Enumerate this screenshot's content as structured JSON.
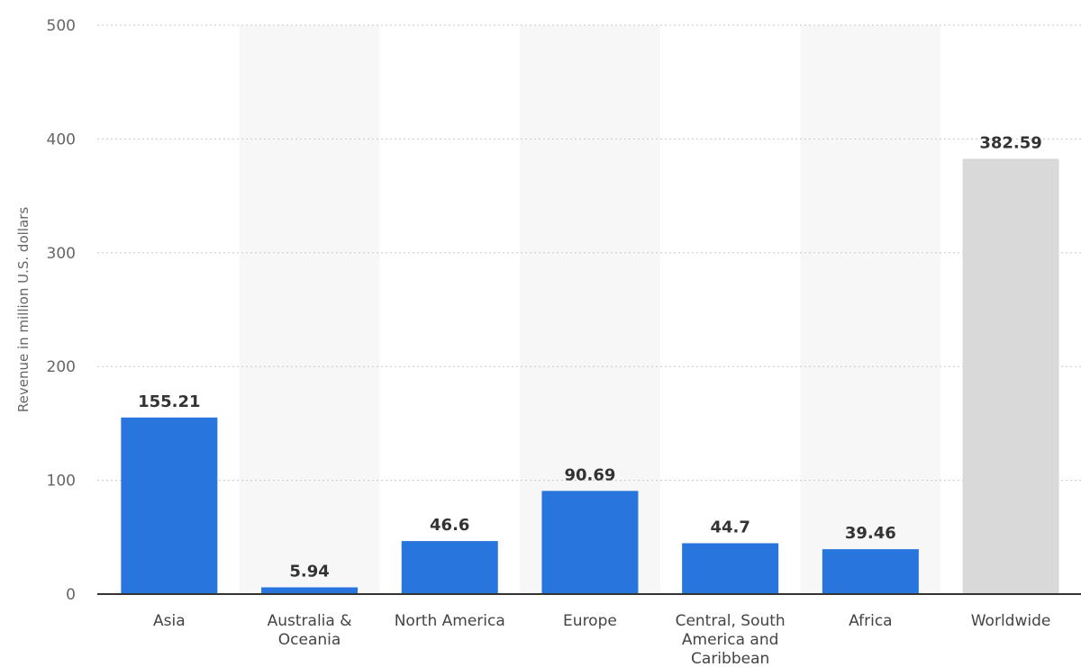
{
  "chart_data": {
    "type": "bar",
    "title": "",
    "xlabel": "",
    "ylabel": "Revenue in million U.S. dollars",
    "ylim": [
      0,
      500
    ],
    "yticks": [
      0,
      100,
      200,
      300,
      400,
      500
    ],
    "grid": true,
    "categories": [
      "Asia",
      "Australia & Oceania",
      "North America",
      "Europe",
      "Central, South America and Caribbean",
      "Africa",
      "Worldwide"
    ],
    "category_lines": [
      [
        "Asia"
      ],
      [
        "Australia &",
        "Oceania"
      ],
      [
        "North America"
      ],
      [
        "Europe"
      ],
      [
        "Central, South",
        "America and",
        "Caribbean"
      ],
      [
        "Africa"
      ],
      [
        "Worldwide"
      ]
    ],
    "values": [
      155.21,
      5.94,
      46.6,
      90.69,
      44.7,
      39.46,
      382.59
    ],
    "value_labels": [
      "155.21",
      "5.94",
      "46.6",
      "90.69",
      "44.7",
      "39.46",
      "382.59"
    ],
    "colors": {
      "bar": "#2876dd",
      "highlight_bar": "#d9d9d9",
      "highlight_category": "Worldwide"
    }
  }
}
